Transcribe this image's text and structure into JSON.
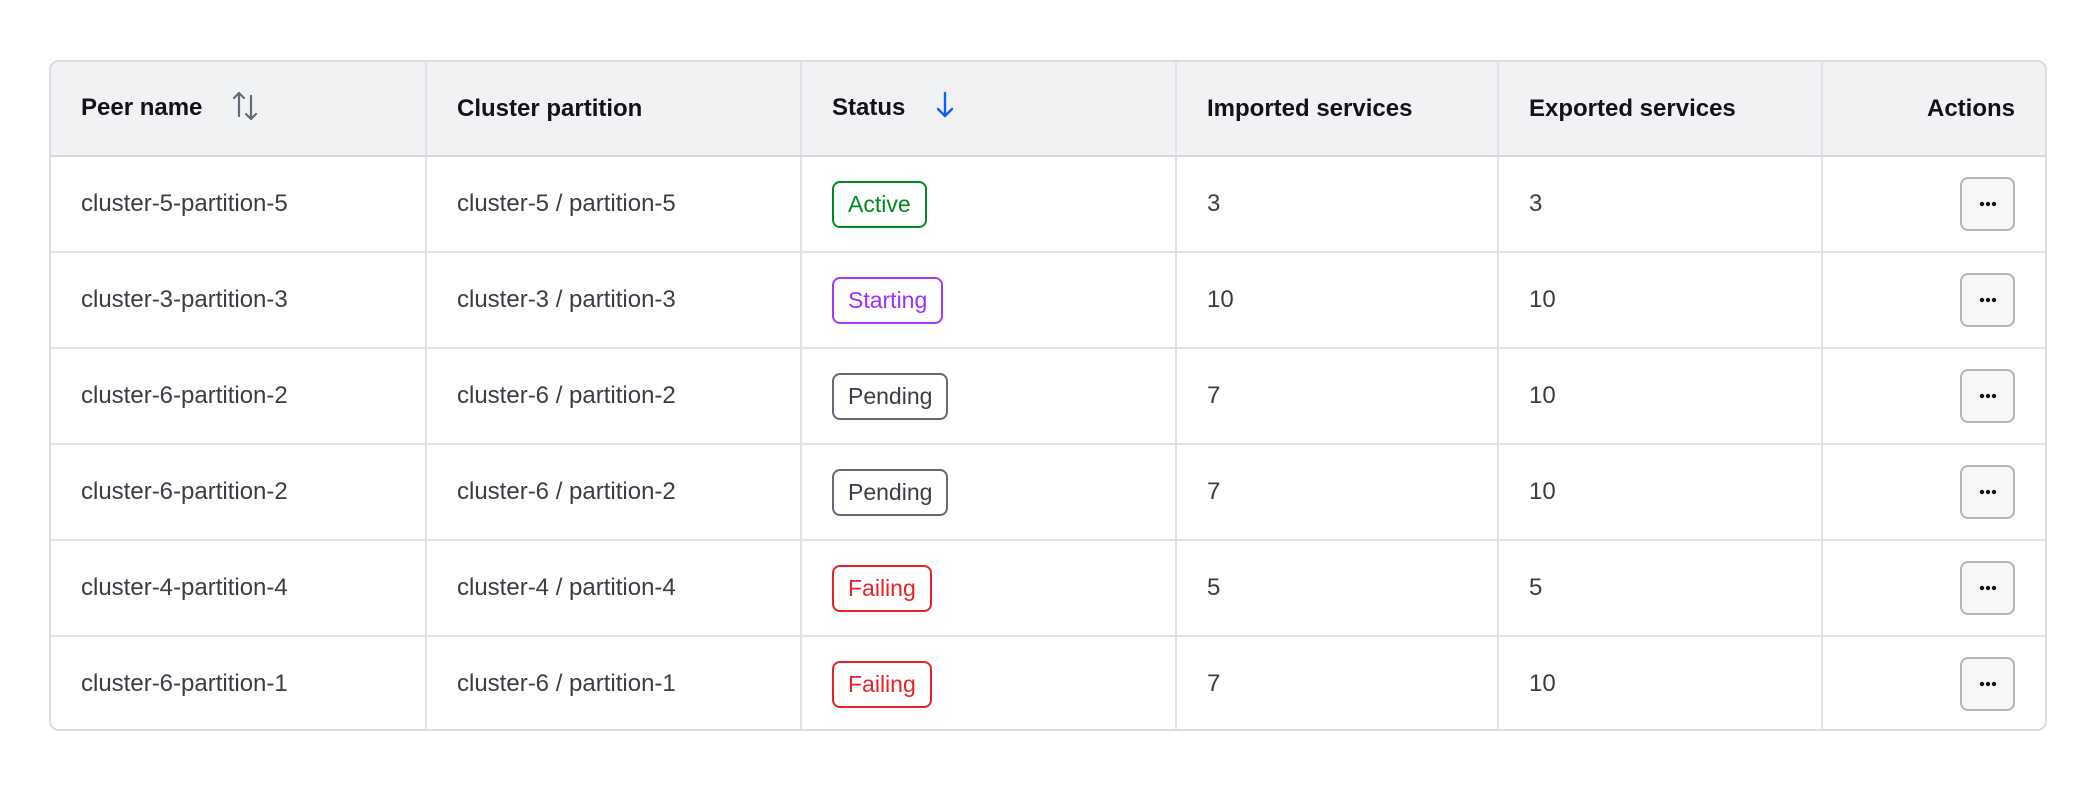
{
  "columns": {
    "peer_name": "Peer name",
    "cluster_partition": "Cluster partition",
    "status": "Status",
    "imported": "Imported services",
    "exported": "Exported services",
    "actions": "Actions"
  },
  "sort": {
    "peer_name": "sortable (unsorted)",
    "status": "descending",
    "active_color": "#1060ff"
  },
  "rows": [
    {
      "peer_name": "cluster-5-partition-5",
      "cluster_partition": "cluster-5 / partition-5",
      "status": "Active",
      "imported": "3",
      "exported": "3"
    },
    {
      "peer_name": "cluster-3-partition-3",
      "cluster_partition": "cluster-3 / partition-3",
      "status": "Starting",
      "imported": "10",
      "exported": "10"
    },
    {
      "peer_name": "cluster-6-partition-2",
      "cluster_partition": "cluster-6 / partition-2",
      "status": "Pending",
      "imported": "7",
      "exported": "10"
    },
    {
      "peer_name": "cluster-6-partition-2",
      "cluster_partition": "cluster-6 / partition-2",
      "status": "Pending",
      "imported": "7",
      "exported": "10"
    },
    {
      "peer_name": "cluster-4-partition-4",
      "cluster_partition": "cluster-4 / partition-4",
      "status": "Failing",
      "imported": "5",
      "exported": "5"
    },
    {
      "peer_name": "cluster-6-partition-1",
      "cluster_partition": "cluster-6 / partition-1",
      "status": "Failing",
      "imported": "7",
      "exported": "10"
    }
  ],
  "status_colors": {
    "Active": "#008a22",
    "Starting": "#a737ff",
    "Pending": "#656a76",
    "Failing": "#e52228"
  }
}
